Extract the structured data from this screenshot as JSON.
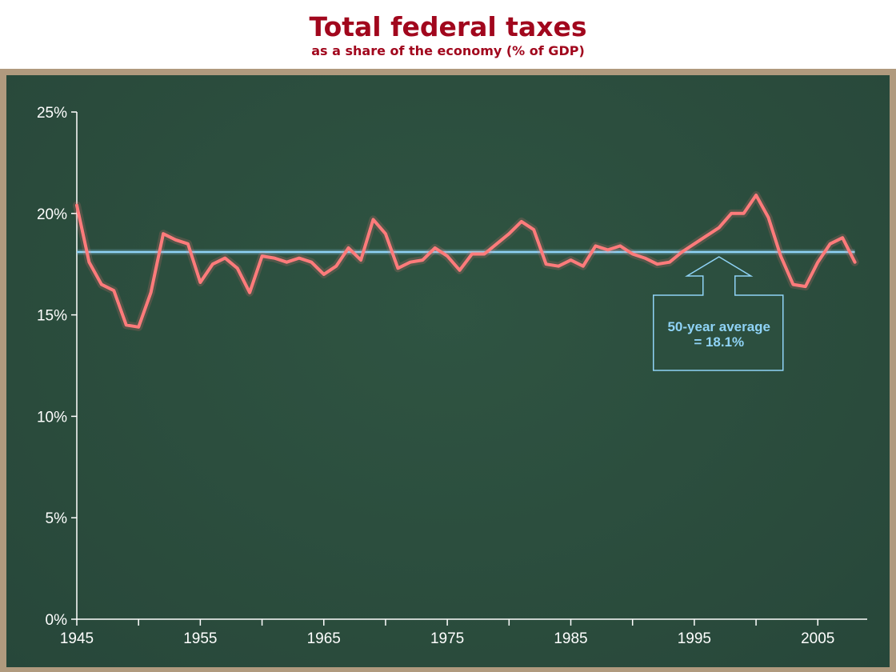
{
  "header": {
    "title": "Total federal taxes",
    "subtitle": "as a share of the economy (% of GDP)"
  },
  "colors": {
    "title": "#a1071d",
    "board": "#2c4f3f",
    "frame": "#b09a7e",
    "series_line": "#ff7b7b",
    "average_line": "#8fd3f6",
    "axis": "#ffffff"
  },
  "chart_data": {
    "type": "line",
    "title": "Total federal taxes",
    "subtitle": "as a share of the economy (% of GDP)",
    "xlabel": "",
    "ylabel": "",
    "xlim": [
      1945,
      2009
    ],
    "ylim": [
      0,
      25
    ],
    "x_ticks": [
      1945,
      1955,
      1965,
      1975,
      1985,
      1995,
      2005
    ],
    "x_tick_labels": [
      "1945",
      "1955",
      "1965",
      "1975",
      "1985",
      "1995",
      "2005"
    ],
    "x_minor_ticks": [
      1950,
      1960,
      1970,
      1980,
      1990,
      2000
    ],
    "y_ticks": [
      0,
      5,
      10,
      15,
      20,
      25
    ],
    "y_tick_labels": [
      "0%",
      "5%",
      "10%",
      "15%",
      "20%",
      "25%"
    ],
    "grid": false,
    "x": [
      1945,
      1946,
      1947,
      1948,
      1949,
      1950,
      1951,
      1952,
      1953,
      1954,
      1955,
      1956,
      1957,
      1958,
      1959,
      1960,
      1961,
      1962,
      1963,
      1964,
      1965,
      1966,
      1967,
      1968,
      1969,
      1970,
      1971,
      1972,
      1973,
      1974,
      1975,
      1976,
      1977,
      1978,
      1979,
      1980,
      1981,
      1982,
      1983,
      1984,
      1985,
      1986,
      1987,
      1988,
      1989,
      1990,
      1991,
      1992,
      1993,
      1994,
      1995,
      1996,
      1997,
      1998,
      1999,
      2000,
      2001,
      2002,
      2003,
      2004,
      2005,
      2006,
      2007,
      2008
    ],
    "series": [
      {
        "values": [
          20.4,
          17.6,
          16.5,
          16.2,
          14.5,
          14.4,
          16.1,
          19.0,
          18.7,
          18.5,
          16.6,
          17.5,
          17.8,
          17.3,
          16.1,
          17.9,
          17.8,
          17.6,
          17.8,
          17.6,
          17.0,
          17.4,
          18.3,
          17.7,
          19.7,
          19.0,
          17.3,
          17.6,
          17.7,
          18.3,
          17.9,
          17.2,
          18.0,
          18.0,
          18.5,
          19.0,
          19.6,
          19.2,
          17.5,
          17.4,
          17.7,
          17.4,
          18.4,
          18.2,
          18.4,
          18.0,
          17.8,
          17.5,
          17.6,
          18.1,
          18.5,
          18.9,
          19.3,
          20.0,
          20.0,
          20.9,
          19.8,
          17.9,
          16.5,
          16.4,
          17.6,
          18.5,
          18.8,
          17.6
        ]
      }
    ],
    "reference_lines": [
      {
        "y": 18.1,
        "x_range": [
          1945,
          2008
        ]
      }
    ],
    "annotations": [
      {
        "text_line1": "50-year average",
        "text_line2": "= 18.1%",
        "points_to": {
          "x": 1997,
          "y": 18.1
        }
      }
    ]
  }
}
